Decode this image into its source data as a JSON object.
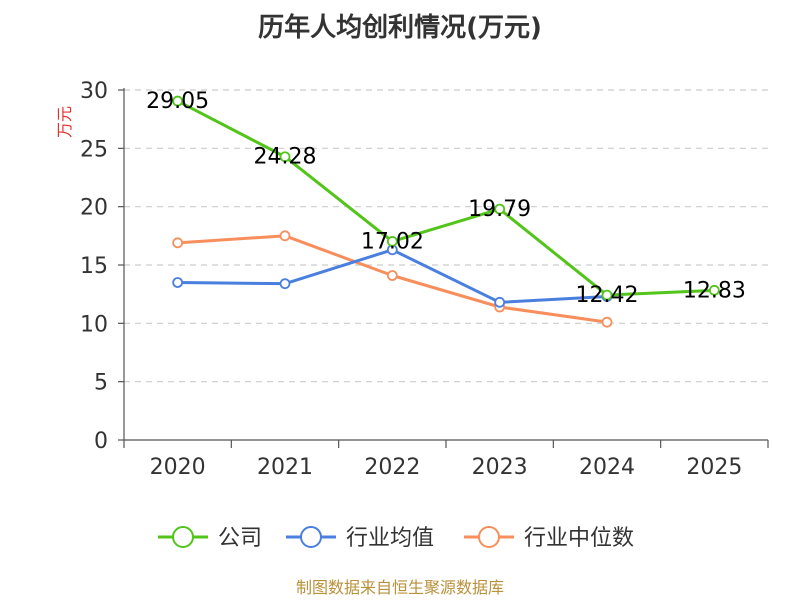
{
  "chart_data": {
    "type": "line",
    "title": "历年人均创利情况(万元)",
    "ylabel": "万元",
    "xlabel": "",
    "categories": [
      "2020",
      "2021",
      "2022",
      "2023",
      "2024",
      "2025"
    ],
    "ylim": [
      0,
      30
    ],
    "yticks": [
      0,
      5,
      10,
      15,
      20,
      25,
      30
    ],
    "grid": true,
    "legend_position": "bottom",
    "series": [
      {
        "name": "公司",
        "color": "#52c41a",
        "values": [
          29.05,
          24.28,
          17.02,
          19.79,
          12.42,
          12.83
        ],
        "labels": [
          "29.05",
          "24.28",
          "17.02",
          "19.79",
          "12.42",
          "12.83"
        ]
      },
      {
        "name": "行业均值",
        "color": "#4a7fe0",
        "values": [
          13.5,
          13.4,
          16.3,
          11.8,
          12.3,
          null
        ]
      },
      {
        "name": "行业中位数",
        "color": "#f78e5b",
        "values": [
          16.9,
          17.5,
          14.1,
          11.4,
          10.1,
          null
        ]
      }
    ]
  },
  "source_text": "制图数据来自恒生聚源数据库"
}
